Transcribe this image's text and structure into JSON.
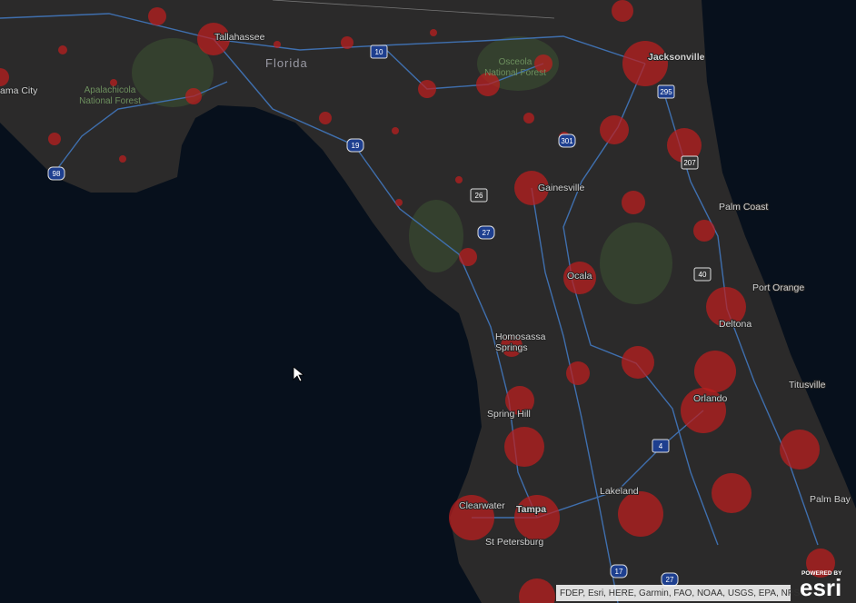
{
  "map": {
    "labels": [
      "Tallahassee",
      "Florida",
      "ama City",
      "Apalachicola",
      "National Forest",
      "Osceola",
      "National Forest",
      "Jacksonville",
      "Gainesville",
      "Palm Coast",
      "Ocala",
      "Port Orange",
      "Deltona",
      "Homosassa",
      "Springs",
      "Titusville",
      "Orlando",
      "Spring Hill",
      "Clearwater",
      "Tampa",
      "Lakeland",
      "Palm Bay",
      "St Petersburg"
    ],
    "shields": [
      "10",
      "295",
      "19",
      "301",
      "207",
      "98",
      "26",
      "27",
      "40",
      "4",
      "17",
      "27"
    ],
    "attribution": "FDEP, Esri, HERE, Garmin, FAO, NOAA, USGS, EPA, NPS",
    "logo": {
      "powered_by": "POWERED BY",
      "name": "esri"
    }
  }
}
